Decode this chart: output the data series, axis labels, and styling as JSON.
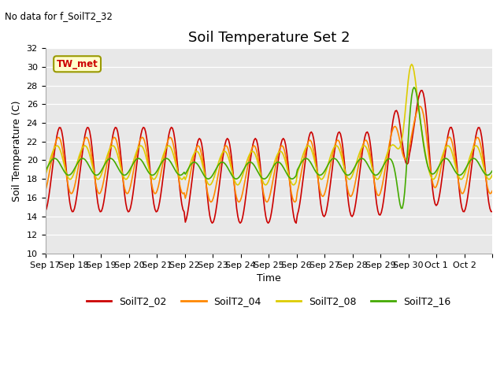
{
  "title": "Soil Temperature Set 2",
  "no_data_text": "No data for f_SoilT2_32",
  "tw_met_label": "TW_met",
  "xlabel": "Time",
  "ylabel": "Soil Temperature (C)",
  "ylim": [
    10,
    32
  ],
  "yticks": [
    10,
    12,
    14,
    16,
    18,
    20,
    22,
    24,
    26,
    28,
    30,
    32
  ],
  "bg_color": "#e8e8e8",
  "series": [
    {
      "name": "SoilT2_02",
      "color": "#cc0000"
    },
    {
      "name": "SoilT2_04",
      "color": "#ff8800"
    },
    {
      "name": "SoilT2_08",
      "color": "#ddcc00"
    },
    {
      "name": "SoilT2_16",
      "color": "#44aa00"
    }
  ],
  "xtick_positions": [
    0,
    1,
    2,
    3,
    4,
    5,
    6,
    7,
    8,
    9,
    10,
    11,
    12,
    13,
    14,
    15,
    16
  ],
  "xtick_labels": [
    "Sep 17",
    "Sep 18",
    "Sep 19",
    "Sep 20",
    "Sep 21",
    "Sep 22",
    "Sep 23",
    "Sep 24",
    "Sep 25",
    "Sep 26",
    "Sep 27",
    "Sep 28",
    "Sep 29",
    "Sep 30",
    "Oct 1",
    "Oct 2",
    ""
  ],
  "title_fontsize": 13,
  "axis_fontsize": 8,
  "label_fontsize": 9
}
